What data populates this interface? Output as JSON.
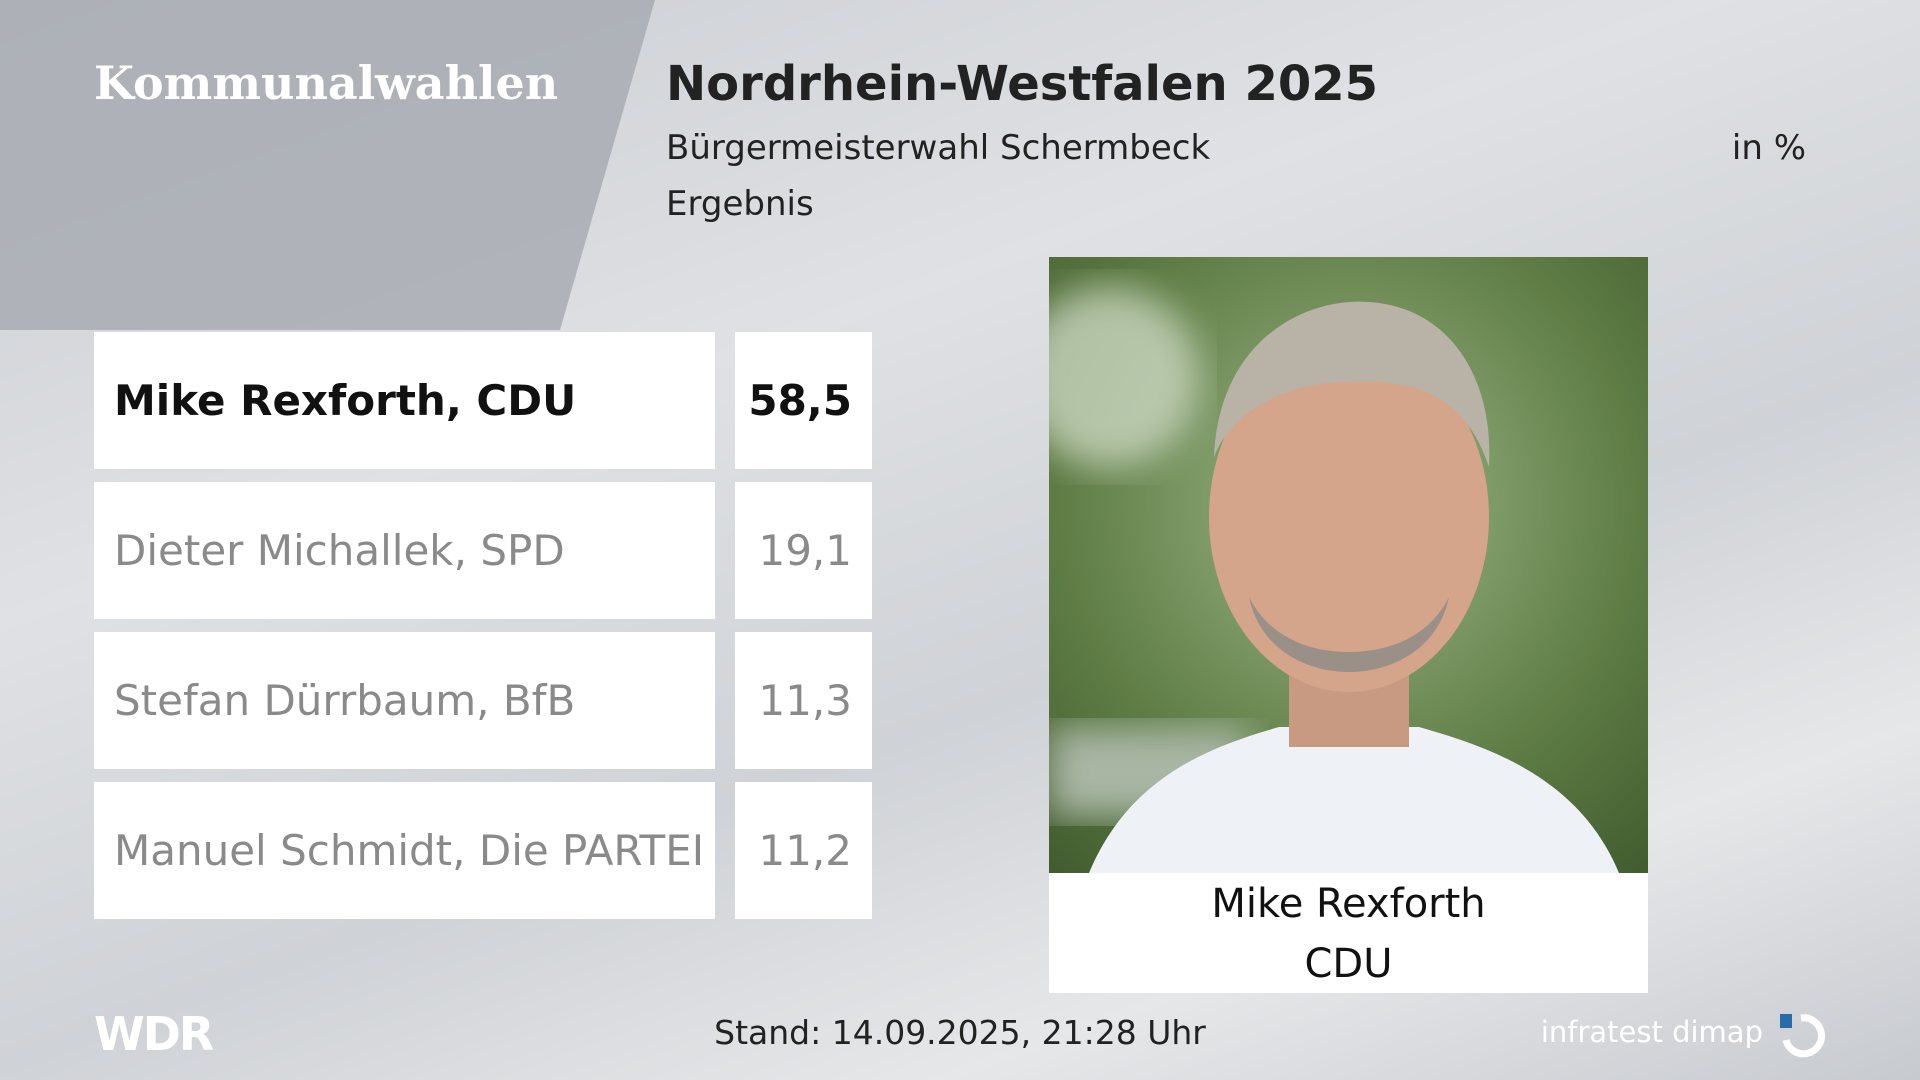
{
  "header": {
    "section": "Kommunalwahlen",
    "title": "Nordrhein-Westfalen 2025",
    "subtitle": "Bürgermeisterwahl Schermbeck",
    "unit": "in %",
    "label": "Ergebnis"
  },
  "results": [
    {
      "name": "Mike Rexforth, CDU",
      "value": "58,5"
    },
    {
      "name": "Dieter Michallek, SPD",
      "value": "19,1"
    },
    {
      "name": "Stefan Dürrbaum, BfB",
      "value": "11,3"
    },
    {
      "name": "Manuel Schmidt, Die PARTEI",
      "value": "11,2"
    }
  ],
  "winner": {
    "name": "Mike Rexforth",
    "party": "CDU"
  },
  "footer": {
    "logo": "WDR",
    "timestamp": "Stand: 14.09.2025, 21:28 Uhr",
    "source": "infratest dimap"
  }
}
